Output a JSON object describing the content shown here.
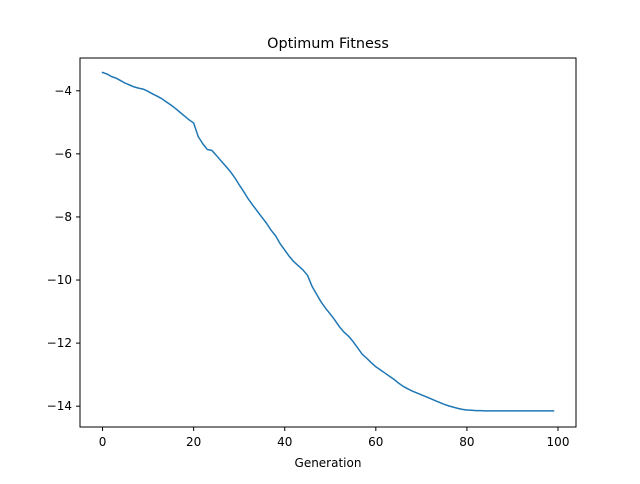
{
  "chart_data": {
    "type": "line",
    "title": "Optimum Fitness",
    "xlabel": "Generation",
    "ylabel": "",
    "xlim": [
      -4.95,
      103.95
    ],
    "ylim": [
      -14.66,
      -2.96
    ],
    "xticks": [
      0,
      20,
      40,
      60,
      80,
      100
    ],
    "yticks": [
      -4,
      -6,
      -8,
      -10,
      -12,
      -14
    ],
    "xtick_labels": [
      "0",
      "20",
      "40",
      "60",
      "80",
      "100"
    ],
    "ytick_labels": [
      "−4",
      "−6",
      "−8",
      "−10",
      "−12",
      "−14"
    ],
    "grid": false,
    "legend": "none",
    "series": [
      {
        "color": "#1f77b4",
        "x": [
          0,
          1,
          2,
          3,
          4,
          5,
          6,
          7,
          8,
          9,
          10,
          11,
          12,
          13,
          14,
          15,
          16,
          17,
          18,
          19,
          20,
          21,
          22,
          23,
          24,
          25,
          26,
          27,
          28,
          29,
          30,
          31,
          32,
          33,
          34,
          35,
          36,
          37,
          38,
          39,
          40,
          41,
          42,
          43,
          44,
          45,
          46,
          47,
          48,
          49,
          50,
          51,
          52,
          53,
          54,
          55,
          56,
          57,
          58,
          59,
          60,
          61,
          62,
          63,
          64,
          65,
          66,
          67,
          68,
          69,
          70,
          71,
          72,
          73,
          74,
          75,
          76,
          77,
          78,
          79,
          80,
          81,
          82,
          83,
          84,
          85,
          86,
          87,
          88,
          89,
          90,
          91,
          92,
          93,
          94,
          95,
          96,
          97,
          98,
          99
        ],
        "y": [
          -3.42,
          -3.47,
          -3.55,
          -3.6,
          -3.68,
          -3.76,
          -3.82,
          -3.88,
          -3.92,
          -3.95,
          -4.02,
          -4.1,
          -4.17,
          -4.25,
          -4.35,
          -4.45,
          -4.56,
          -4.68,
          -4.8,
          -4.92,
          -5.02,
          -5.45,
          -5.68,
          -5.86,
          -5.89,
          -6.05,
          -6.22,
          -6.38,
          -6.55,
          -6.75,
          -6.98,
          -7.2,
          -7.43,
          -7.63,
          -7.82,
          -8.01,
          -8.2,
          -8.42,
          -8.6,
          -8.85,
          -9.05,
          -9.25,
          -9.42,
          -9.55,
          -9.68,
          -9.85,
          -10.2,
          -10.45,
          -10.7,
          -10.9,
          -11.08,
          -11.27,
          -11.48,
          -11.65,
          -11.78,
          -11.95,
          -12.15,
          -12.35,
          -12.48,
          -12.62,
          -12.75,
          -12.85,
          -12.95,
          -13.05,
          -13.15,
          -13.27,
          -13.37,
          -13.45,
          -13.52,
          -13.58,
          -13.64,
          -13.7,
          -13.76,
          -13.82,
          -13.88,
          -13.94,
          -13.99,
          -14.03,
          -14.07,
          -14.1,
          -14.12,
          -14.13,
          -14.14,
          -14.14,
          -14.15,
          -14.15,
          -14.15,
          -14.15,
          -14.15,
          -14.15,
          -14.15,
          -14.15,
          -14.15,
          -14.15,
          -14.15,
          -14.15,
          -14.15,
          -14.15,
          -14.15,
          -14.15
        ]
      }
    ]
  }
}
